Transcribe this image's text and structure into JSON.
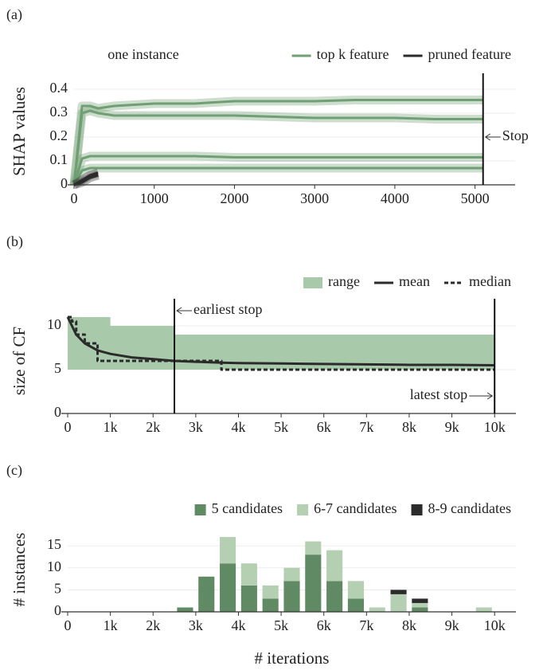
{
  "chart_data": [
    {
      "type": "line",
      "panel": "(a)",
      "title": "one instance",
      "ylabel": "SHAP values",
      "x": [
        0,
        100,
        200,
        300,
        500,
        1000,
        1500,
        2000,
        2500,
        3000,
        3500,
        4000,
        4500,
        5000,
        5100
      ],
      "series": [
        {
          "name": "top k feature",
          "color": "#6f9f72",
          "band": true,
          "lines": [
            [
              0,
              0.33,
              0.33,
              0.32,
              0.33,
              0.34,
              0.34,
              0.35,
              0.35,
              0.35,
              0.355,
              0.355,
              0.355,
              0.355,
              0.355
            ],
            [
              0,
              0.3,
              0.31,
              0.3,
              0.29,
              0.29,
              0.29,
              0.29,
              0.285,
              0.28,
              0.28,
              0.28,
              0.275,
              0.275,
              0.275
            ],
            [
              0,
              0.11,
              0.12,
              0.12,
              0.12,
              0.12,
              0.12,
              0.115,
              0.115,
              0.115,
              0.115,
              0.115,
              0.115,
              0.115,
              0.115
            ],
            [
              0,
              0.06,
              0.07,
              0.07,
              0.07,
              0.07,
              0.07,
              0.07,
              0.07,
              0.07,
              0.07,
              0.07,
              0.07,
              0.07,
              0.07
            ]
          ]
        },
        {
          "name": "pruned feature",
          "color": "#2b2b2b",
          "band": true,
          "lines": [
            [
              0,
              0.02,
              0.04,
              0.05,
              null,
              null,
              null,
              null,
              null,
              null,
              null,
              null,
              null,
              null,
              null
            ],
            [
              0,
              0.01,
              0.03,
              0.04,
              null,
              null,
              null,
              null,
              null,
              null,
              null,
              null,
              null,
              null,
              null
            ]
          ]
        }
      ],
      "xlim": [
        0,
        5500
      ],
      "xticks": [
        0,
        1000,
        2000,
        3000,
        4000,
        5000
      ],
      "ylim": [
        0,
        0.45
      ],
      "yticks": [
        0,
        0.1,
        0.2,
        0.3,
        0.4
      ],
      "grid": true,
      "vlines": [
        {
          "x": 5100,
          "label": "Stop"
        }
      ]
    },
    {
      "type": "line",
      "panel": "(b)",
      "ylabel": "size of CF",
      "x": [
        0,
        100,
        200,
        400,
        700,
        1000,
        1500,
        2000,
        2500,
        3000,
        3600,
        4000,
        5000,
        6000,
        7000,
        8000,
        9000,
        10000
      ],
      "series": [
        {
          "name": "range",
          "color": "#a9c9ab",
          "kind": "range",
          "step": true,
          "upper": [
            11,
            11,
            11,
            11,
            11,
            10,
            10,
            10,
            9,
            9,
            9,
            9,
            9,
            9,
            9,
            9,
            9,
            9
          ],
          "lower": [
            5,
            5,
            5,
            5,
            5,
            5,
            5,
            5,
            5,
            5,
            5,
            5,
            5,
            5,
            5,
            5,
            5,
            5
          ]
        },
        {
          "name": "mean",
          "color": "#2b2b2b",
          "values": [
            11,
            10,
            9,
            8,
            7.2,
            6.8,
            6.4,
            6.2,
            6,
            5.9,
            5.8,
            5.75,
            5.7,
            5.65,
            5.6,
            5.55,
            5.55,
            5.5
          ]
        },
        {
          "name": "median",
          "color": "#2b2b2b",
          "dash": true,
          "step": true,
          "values": [
            11,
            10.5,
            9,
            8,
            6,
            6,
            6,
            6,
            6,
            6,
            5,
            5,
            5,
            5,
            5,
            5,
            5,
            5
          ]
        }
      ],
      "xlim": [
        0,
        10500
      ],
      "xticks": [
        0,
        {
          "value": 1000,
          "label": "1k"
        },
        {
          "value": 2000,
          "label": "2k"
        },
        {
          "value": 3000,
          "label": "3k"
        },
        {
          "value": 4000,
          "label": "4k"
        },
        {
          "value": 5000,
          "label": "5k"
        },
        {
          "value": 6000,
          "label": "6k"
        },
        {
          "value": 7000,
          "label": "7k"
        },
        {
          "value": 8000,
          "label": "8k"
        },
        {
          "value": 9000,
          "label": "9k"
        },
        {
          "value": 10000,
          "label": "10k"
        }
      ],
      "ylim": [
        0,
        12
      ],
      "yticks": [
        0,
        5,
        10
      ],
      "grid": true,
      "vlines": [
        {
          "x": 2500,
          "label": "earliest stop"
        },
        {
          "x": 10000,
          "label": "latest stop"
        }
      ]
    },
    {
      "type": "stacked_bar",
      "panel": "(c)",
      "ylabel": "# instances",
      "xlabel": "# iterations",
      "x": [
        2750,
        3250,
        3750,
        4250,
        4750,
        5250,
        5750,
        6250,
        6750,
        7250,
        7750,
        8250,
        8750,
        9250,
        9750
      ],
      "series": [
        {
          "name": "5 candidates",
          "color": "#5f8a63",
          "values": [
            1,
            8,
            11,
            6,
            3,
            7,
            13,
            7,
            3,
            0,
            0,
            1,
            0,
            0,
            0
          ]
        },
        {
          "name": "6-7 candidates",
          "color": "#b5cfb2",
          "values": [
            0,
            0,
            6,
            5,
            3,
            3,
            3,
            7,
            4,
            1,
            4,
            1,
            0,
            0,
            1
          ]
        },
        {
          "name": "8-9 candidates",
          "color": "#2b2b2b",
          "values": [
            0,
            0,
            0,
            0,
            0,
            0,
            0,
            0,
            0,
            0,
            1,
            1,
            0,
            0,
            0
          ]
        }
      ],
      "xlim": [
        0,
        10500
      ],
      "xticks": [
        0,
        {
          "value": 1000,
          "label": "1k"
        },
        {
          "value": 2000,
          "label": "2k"
        },
        {
          "value": 3000,
          "label": "3k"
        },
        {
          "value": 4000,
          "label": "4k"
        },
        {
          "value": 5000,
          "label": "5k"
        },
        {
          "value": 6000,
          "label": "6k"
        },
        {
          "value": 7000,
          "label": "7k"
        },
        {
          "value": 8000,
          "label": "8k"
        },
        {
          "value": 9000,
          "label": "9k"
        },
        {
          "value": 10000,
          "label": "10k"
        }
      ],
      "ylim": [
        0,
        19
      ],
      "yticks": [
        0,
        5,
        10,
        15
      ],
      "grid": true
    }
  ]
}
